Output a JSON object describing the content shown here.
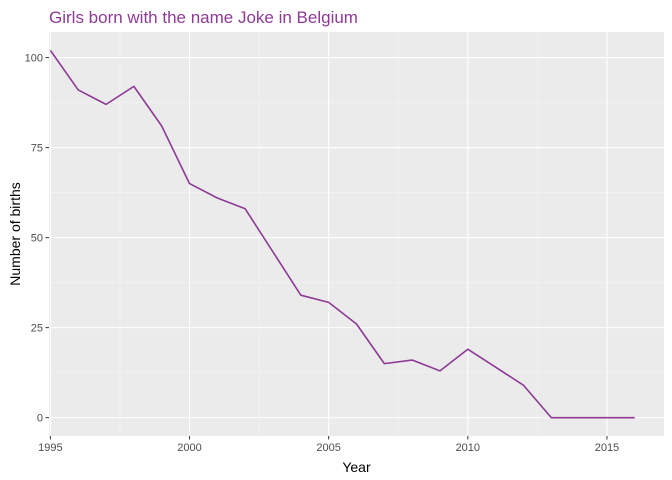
{
  "colors": {
    "title": "#8E3A96",
    "line": "#8E3A96",
    "panel": "#EBEBEB",
    "grid_major": "#FFFFFF",
    "grid_minor": "#F5F5F5"
  },
  "chart_data": {
    "type": "line",
    "title": "Girls born with the name Joke in Belgium",
    "xlabel": "Year",
    "ylabel": "Number of births",
    "x": [
      1995,
      1996,
      1997,
      1998,
      1999,
      2000,
      2001,
      2002,
      2003,
      2004,
      2005,
      2006,
      2007,
      2008,
      2009,
      2010,
      2011,
      2012,
      2013,
      2014,
      2015,
      2016
    ],
    "series": [
      {
        "values": [
          102,
          91,
          87,
          92,
          81,
          65,
          61,
          58,
          46,
          34,
          32,
          26,
          15,
          16,
          13,
          19,
          14,
          9,
          0,
          0,
          0,
          0
        ]
      }
    ],
    "xlim": [
      1994.95,
      2017.05
    ],
    "ylim": [
      -5.1,
      107.1
    ],
    "x_ticks": [
      1995,
      2000,
      2005,
      2010,
      2015
    ],
    "x_tick_labels": [
      "1995",
      "2000",
      "2005",
      "2010",
      "2015"
    ],
    "y_ticks": [
      0,
      25,
      50,
      75,
      100
    ],
    "y_tick_labels": [
      "0",
      "25",
      "50",
      "75",
      "100"
    ],
    "grid": true,
    "legend": "none"
  }
}
